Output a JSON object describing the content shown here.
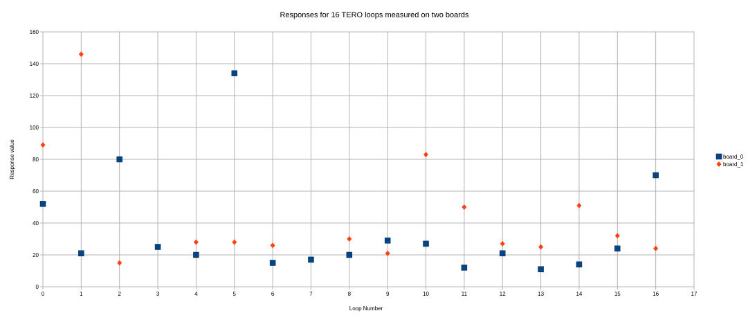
{
  "chart_data": {
    "type": "scatter",
    "title": "Responses for 16 TERO loops measured on two boards",
    "xlabel": "Loop Number",
    "ylabel": "Response value",
    "xlim": [
      0,
      17
    ],
    "ylim": [
      0,
      160
    ],
    "xticks": [
      "0",
      "1",
      "2",
      "3",
      "4",
      "5",
      "6",
      "7",
      "8",
      "9",
      "10",
      "11",
      "12",
      "13",
      "14",
      "15",
      "16",
      "17"
    ],
    "yticks": [
      "0",
      "20",
      "40",
      "60",
      "80",
      "100",
      "120",
      "140",
      "160"
    ],
    "grid": true,
    "legend_position": "right",
    "series": [
      {
        "name": "board_0",
        "marker": "square",
        "color": "#004586",
        "x": [
          0,
          1,
          2,
          3,
          4,
          5,
          6,
          7,
          8,
          9,
          10,
          11,
          12,
          13,
          14,
          15,
          16
        ],
        "y": [
          52,
          21,
          80,
          25,
          20,
          134,
          15,
          17,
          20,
          29,
          27,
          12,
          21,
          11,
          14,
          24,
          70
        ]
      },
      {
        "name": "board_1",
        "marker": "diamond",
        "color": "#ff420e",
        "x": [
          0,
          1,
          2,
          4,
          5,
          6,
          8,
          9,
          10,
          11,
          12,
          13,
          14,
          15,
          16
        ],
        "y": [
          89,
          146,
          15,
          28,
          28,
          26,
          30,
          21,
          83,
          50,
          27,
          25,
          51,
          32,
          24
        ]
      }
    ]
  }
}
